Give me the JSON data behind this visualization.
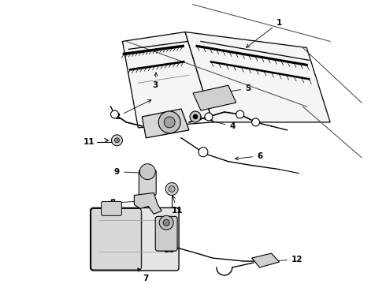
{
  "background_color": "#ffffff",
  "line_color": "#000000",
  "fig_width": 4.9,
  "fig_height": 3.6,
  "dpi": 100,
  "label_fontsize": 7.5,
  "lw_main": 1.0,
  "lw_thin": 0.6,
  "gray_light": "#e8e8e8",
  "gray_mid": "#cccccc",
  "gray_dark": "#aaaaaa"
}
